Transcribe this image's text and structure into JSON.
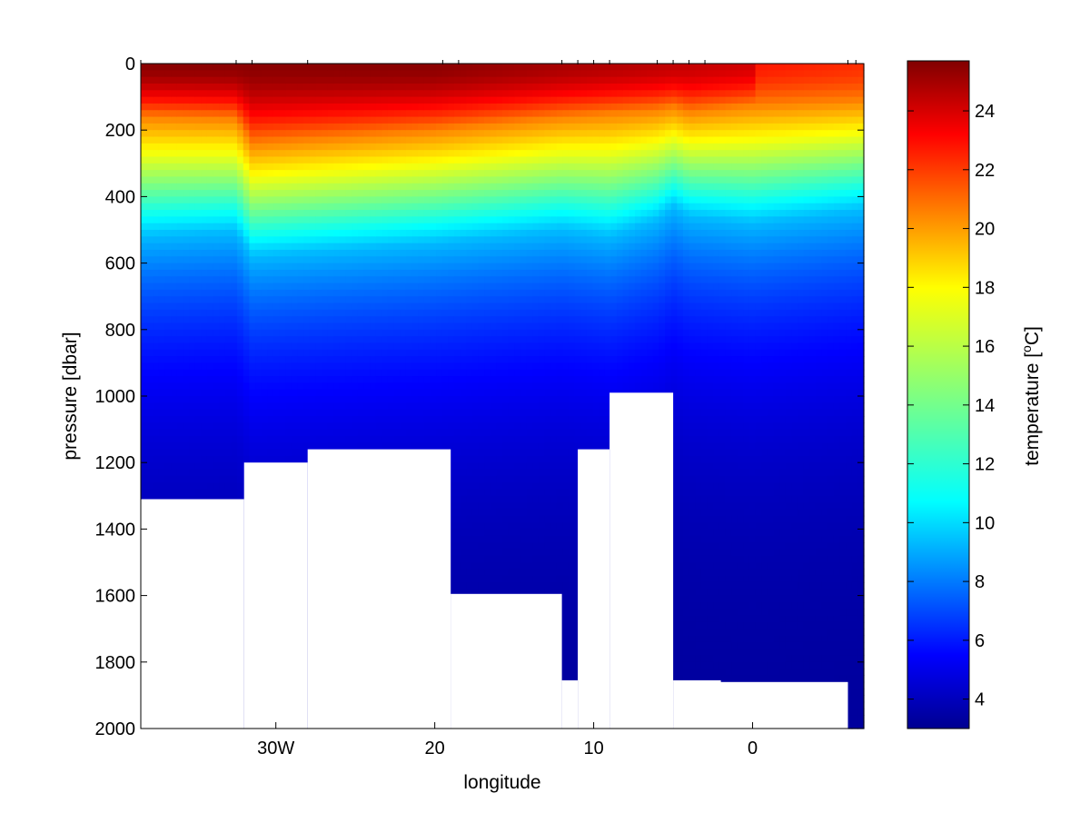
{
  "chart_data": {
    "type": "heatmap",
    "title": "",
    "xlabel": "longitude",
    "ylabel": "pressure [dbar]",
    "colorbar_label": "temperature [",
    "colorbar_label_sup": "o",
    "colorbar_label_end": "C]",
    "colormap": "jet",
    "x_axis": {
      "direction": "decreasing-westward",
      "range": [
        38.5,
        -7.0
      ],
      "ticks": [
        30,
        20,
        10,
        0
      ],
      "tick_labels": [
        "30W",
        "20",
        "10",
        "0"
      ]
    },
    "y_axis": {
      "reversed": true,
      "range": [
        0,
        2000
      ],
      "ticks": [
        0,
        200,
        400,
        600,
        800,
        1000,
        1200,
        1400,
        1600,
        1800,
        2000
      ],
      "tick_labels": [
        "0",
        "200",
        "400",
        "600",
        "800",
        "1000",
        "1200",
        "1400",
        "1600",
        "1800",
        "2000"
      ]
    },
    "colorbar": {
      "range": [
        3.0,
        25.7
      ],
      "ticks": [
        4,
        6,
        8,
        10,
        12,
        14,
        16,
        18,
        20,
        22,
        24
      ],
      "tick_labels": [
        "4",
        "6",
        "8",
        "10",
        "12",
        "14",
        "16",
        "18",
        "20",
        "22",
        "24"
      ]
    },
    "station_longitudes": [
      38.5,
      32.5,
      31.5,
      28.0,
      19.5,
      18.5,
      12.0,
      11.0,
      10.0,
      9.0,
      6.0,
      5.0,
      4.0,
      3.0,
      -6.0,
      -6.5
    ],
    "thermocline_profile": {
      "longitude": [
        38.5,
        32.5,
        31.5,
        20.0,
        12.0,
        9.0,
        6.0,
        5.0,
        4.0,
        0.0,
        -7.0
      ],
      "depth_20C": [
        160,
        165,
        240,
        200,
        160,
        150,
        140,
        130,
        145,
        125,
        110
      ],
      "depth_10C": [
        520,
        505,
        580,
        540,
        500,
        520,
        470,
        430,
        460,
        480,
        440
      ]
    },
    "surface_max_temp": 25.5,
    "deep_temp": 3.5,
    "bottom_mask": {
      "description": "white seafloor region below last measurement",
      "steps": [
        {
          "lon": [
            38.5,
            32.0
          ],
          "depth": 1310
        },
        {
          "lon": [
            32.0,
            28.0
          ],
          "depth": 1200
        },
        {
          "lon": [
            28.0,
            19.0
          ],
          "depth": 1160
        },
        {
          "lon": [
            19.0,
            12.0
          ],
          "depth": 1595
        },
        {
          "lon": [
            12.0,
            11.0
          ],
          "depth": 1855
        },
        {
          "lon": [
            11.0,
            9.0
          ],
          "depth": 1160
        },
        {
          "lon": [
            9.0,
            5.0
          ],
          "depth": 990
        },
        {
          "lon": [
            5.0,
            2.0
          ],
          "depth": 1855
        },
        {
          "lon": [
            2.0,
            -6.0
          ],
          "depth": 1860
        },
        {
          "lon": [
            -6.0,
            -7.0
          ],
          "depth": 2000
        }
      ]
    }
  }
}
